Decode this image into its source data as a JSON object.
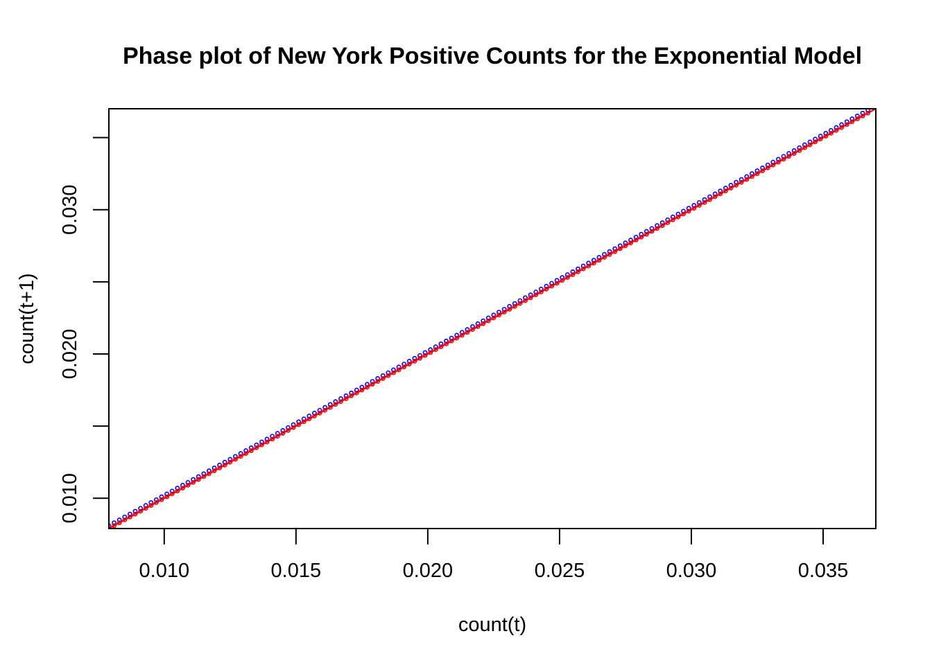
{
  "chart_data": {
    "type": "scatter",
    "title": "Phase plot of New York Positive Counts for the Exponential Model",
    "xlabel": "count(t)",
    "ylabel": "count(t+1)",
    "xlim": [
      0.0079,
      0.037
    ],
    "ylim": [
      0.0079,
      0.037
    ],
    "x_ticks": [
      0.01,
      0.015,
      0.02,
      0.025,
      0.03,
      0.035
    ],
    "x_tick_labels": [
      "0.010",
      "0.015",
      "0.020",
      "0.025",
      "0.030",
      "0.035"
    ],
    "y_ticks": [
      0.01,
      0.015,
      0.02,
      0.025,
      0.03,
      0.035
    ],
    "y_tick_labels": [
      "0.010",
      "",
      "0.020",
      "",
      "0.030",
      ""
    ],
    "grid": false,
    "series": [
      {
        "marker": "circle",
        "color": "#0000ff",
        "x_start": 0.0079,
        "x_end": 0.0368,
        "x_step": 0.0002,
        "growth_offset": 0.0002
      },
      {
        "marker": "circle",
        "color": "#ff0000",
        "x_start": 0.0079,
        "x_end": 0.0368,
        "x_step": 0.0002,
        "growth_offset": 0.0
      }
    ],
    "reference_lines": [
      {
        "kind": "identity",
        "color": "#000000"
      },
      {
        "kind": "fit",
        "color": "#ff0000"
      }
    ]
  }
}
